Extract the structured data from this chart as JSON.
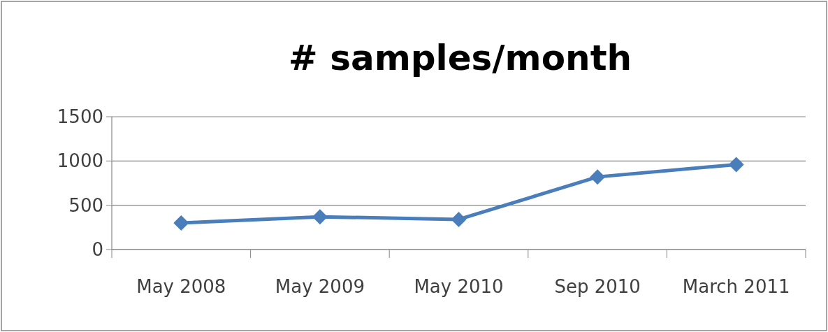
{
  "chart_data": {
    "type": "line",
    "title": "# samples/month",
    "categories": [
      "May 2008",
      "May 2009",
      "May 2010",
      "Sep 2010",
      "March 2011"
    ],
    "series": [
      {
        "color": "#4a7ebb",
        "values": [
          300,
          370,
          340,
          820,
          960
        ]
      }
    ],
    "ylim": [
      0,
      1500
    ],
    "yticks": [
      0,
      500,
      1000,
      1500
    ],
    "grid": "y",
    "marker": "diamond"
  }
}
